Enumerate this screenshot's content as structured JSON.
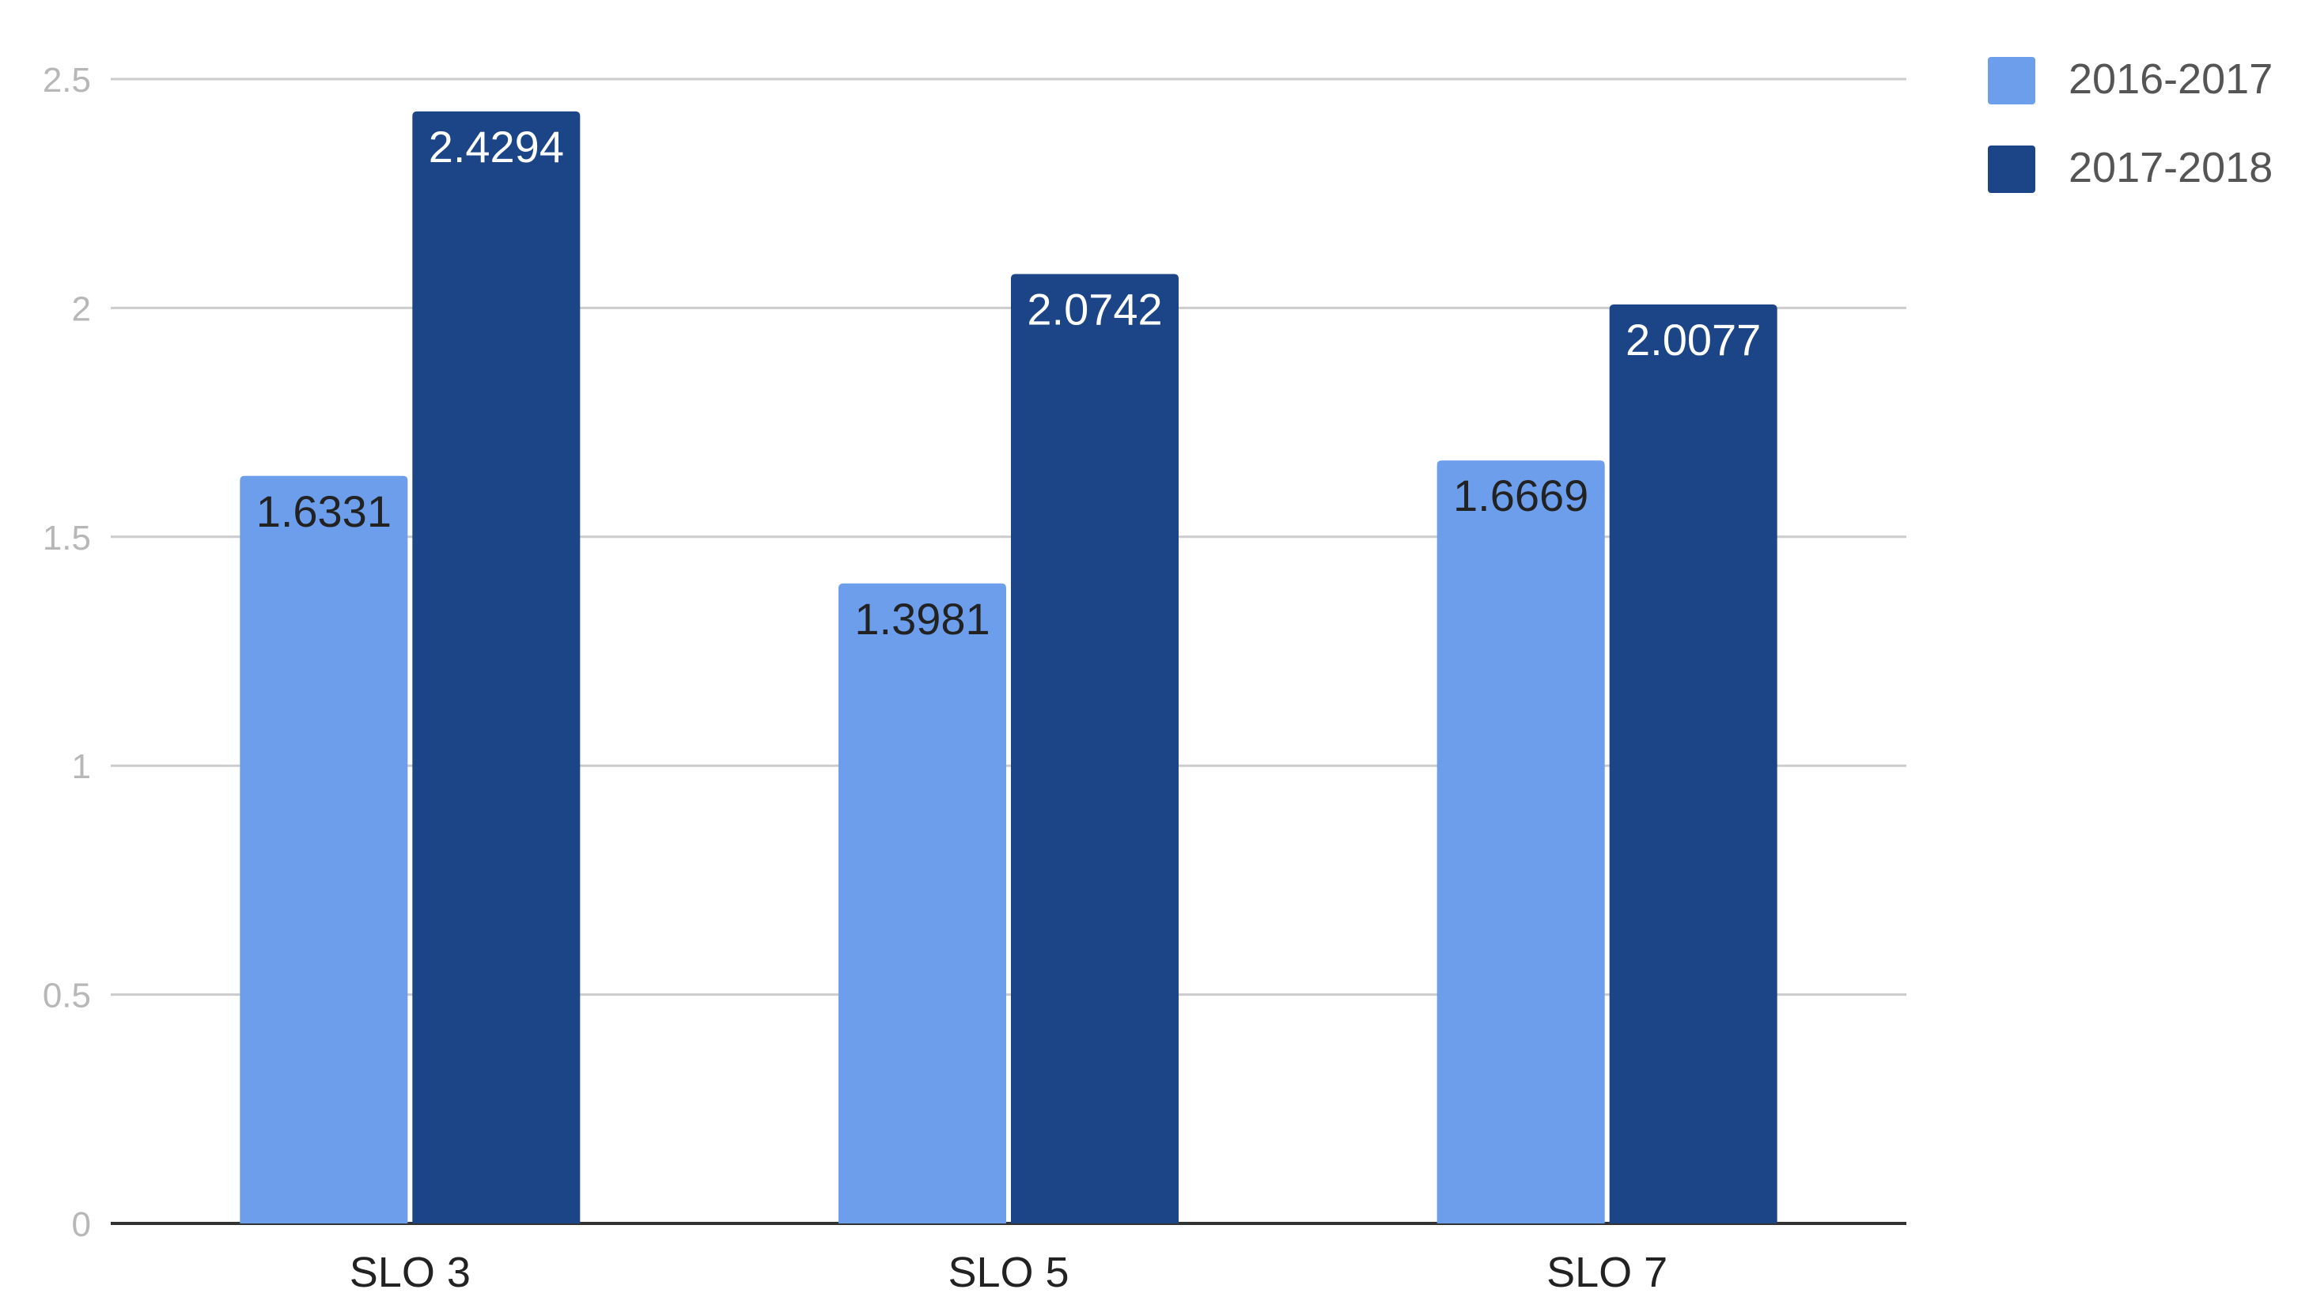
{
  "chart_data": {
    "type": "bar",
    "title": "",
    "xlabel": "",
    "ylabel": "",
    "categories": [
      "SLO 3",
      "SLO 5",
      "SLO 7"
    ],
    "series": [
      {
        "name": "2016-2017",
        "values": [
          1.6331,
          1.3981,
          1.6669
        ],
        "labels": [
          "1.6331",
          "1.3981",
          "1.6669"
        ]
      },
      {
        "name": "2017-2018",
        "values": [
          2.4294,
          2.0742,
          2.0077
        ],
        "labels": [
          "2.4294",
          "2.0742",
          "2.0077"
        ]
      }
    ],
    "ylim": [
      0,
      2.5
    ],
    "yticks": [
      0,
      0.5,
      1,
      1.5,
      2,
      2.5
    ],
    "ytick_labels": [
      "0",
      "0.5",
      "1",
      "1.5",
      "2",
      "2.5"
    ],
    "grid": true,
    "legend_position": "top-right",
    "colors": {
      "series": [
        "#6d9eeb",
        "#1c4587"
      ],
      "grid": "#cccccc",
      "baseline": "#333333",
      "tick_text": "#b7b7b7",
      "category_text": "#222222",
      "legend_text": "#555555",
      "label_text_light_bar": "#222222",
      "label_text_dark_bar": "#ffffff",
      "background": "#ffffff"
    }
  }
}
